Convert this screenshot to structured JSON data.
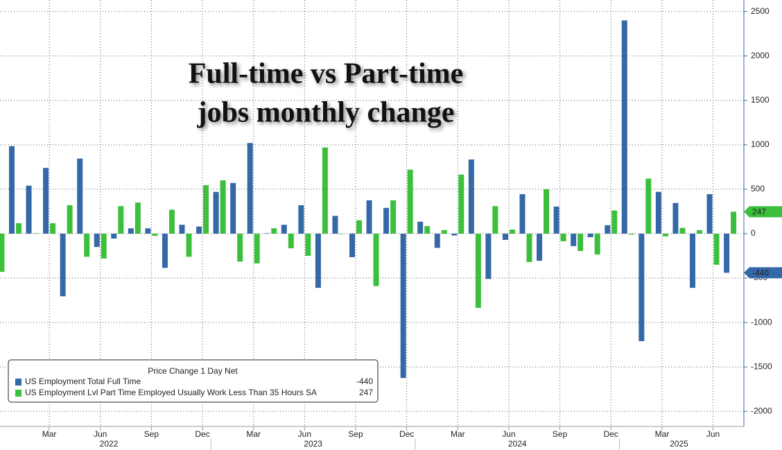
{
  "chart_data": {
    "type": "bar",
    "title": [
      "Full-time vs  Part-time",
      "jobs monthly change"
    ],
    "categories": [
      null,
      null,
      null,
      "Mar",
      null,
      null,
      "Jun",
      null,
      null,
      "Sep",
      null,
      null,
      "Dec",
      null,
      null,
      "Mar",
      null,
      null,
      "Jun",
      null,
      null,
      "Sep",
      null,
      null,
      "Dec",
      null,
      null,
      "Mar",
      null,
      null,
      "Jun",
      null,
      null,
      "Sep",
      null,
      null,
      "Dec",
      null,
      null,
      "Mar",
      null,
      null,
      "Jun",
      null
    ],
    "year_labels": [
      "2022",
      "2023",
      "2024",
      "2025"
    ],
    "series": [
      {
        "name": "US Employment Total Full Time",
        "color": "#3568a6",
        "values": [
          null,
          985,
          540,
          740,
          -705,
          845,
          -150,
          -55,
          60,
          60,
          -385,
          100,
          80,
          470,
          570,
          1020,
          5,
          100,
          320,
          -610,
          200,
          -265,
          375,
          290,
          -1625,
          135,
          -160,
          -20,
          835,
          -510,
          -70,
          445,
          -305,
          305,
          -140,
          -40,
          95,
          2400,
          -1210,
          470,
          345,
          -610,
          445,
          -440
        ]
      },
      {
        "name": "US Employment Lvl Part Time Employed Usually Work Less Than 35 Hours SA",
        "color": "#3cbf3c",
        "values": [
          -430,
          117,
          5,
          117,
          320,
          -260,
          -280,
          310,
          350,
          -25,
          270,
          -260,
          545,
          600,
          -315,
          -335,
          60,
          -165,
          -250,
          970,
          -5,
          150,
          -590,
          375,
          720,
          85,
          40,
          665,
          -835,
          310,
          45,
          -320,
          500,
          -85,
          -195,
          -235,
          260,
          -10,
          620,
          -30,
          65,
          40,
          -350,
          247
        ]
      }
    ],
    "legend_title": "Price Change 1 Day Net",
    "ylim": [
      -2170,
      2630
    ],
    "yticks": [
      -2000,
      -1500,
      -1000,
      -500,
      0,
      500,
      1000,
      1500,
      2000,
      2500
    ],
    "grid": true
  }
}
